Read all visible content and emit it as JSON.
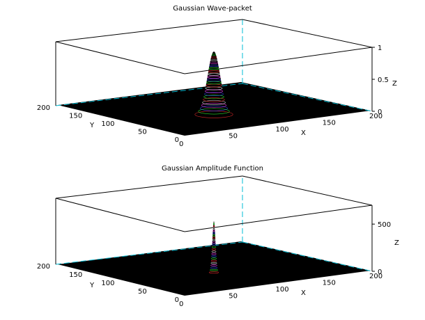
{
  "chart_data": [
    {
      "type": "surface",
      "title": "Gaussian Wave-packet",
      "xlabel": "X",
      "ylabel": "Y",
      "zlabel": "Z",
      "xlim": [
        0,
        200
      ],
      "ylim": [
        0,
        200
      ],
      "zlim": [
        0,
        1
      ],
      "x_ticks": [
        "0",
        "50",
        "100",
        "150",
        "200"
      ],
      "y_ticks": [
        "0",
        "50",
        "100",
        "150",
        "200"
      ],
      "z_ticks": [
        "0",
        "0.5",
        "1"
      ],
      "peak": {
        "x": 100,
        "y": 100,
        "z": 1
      },
      "surface_color": "#000000",
      "mesh_colors": [
        "#ff3030",
        "#30ff30",
        "#3050ff",
        "#ff40ff",
        "#ffffff"
      ],
      "box_color": "#000000",
      "hidden_edge_color": "#00bcd4",
      "grid": false
    },
    {
      "type": "surface",
      "title": "Gaussian Amplitude Function",
      "xlabel": "X",
      "ylabel": "Y",
      "zlabel": "Z",
      "xlim": [
        0,
        200
      ],
      "ylim": [
        0,
        200
      ],
      "zlim": [
        0,
        700
      ],
      "x_ticks": [
        "0",
        "50",
        "100",
        "150",
        "200"
      ],
      "y_ticks": [
        "0",
        "50",
        "100",
        "150",
        "200"
      ],
      "z_ticks": [
        "0",
        "500"
      ],
      "peak": {
        "x": 100,
        "y": 100,
        "z": 700
      },
      "surface_color": "#000000",
      "mesh_colors": [
        "#ff3030",
        "#30ff30",
        "#3050ff",
        "#ff40ff",
        "#ffffff"
      ],
      "box_color": "#000000",
      "hidden_edge_color": "#00bcd4",
      "grid": false
    }
  ]
}
